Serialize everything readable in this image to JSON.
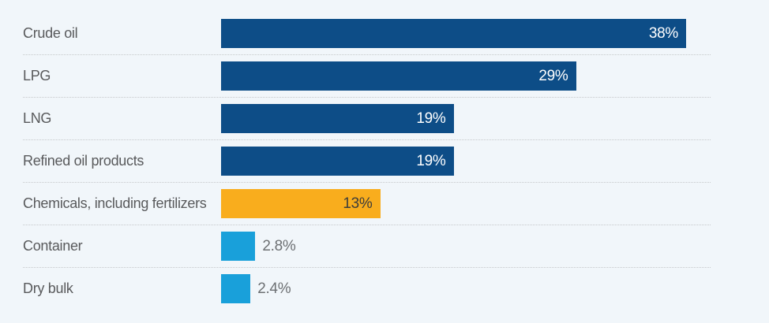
{
  "colors": {
    "background": "#f1f6fa",
    "dark_blue": "#0d4d87",
    "orange": "#f9ad1d",
    "cyan": "#19a0da",
    "label_text": "#595a5c",
    "value_outside": "#6d7073",
    "value_inside_light": "#ffffff",
    "value_inside_dark": "#3d3d3b",
    "separator": "#c6c8ca"
  },
  "chart_data": {
    "type": "bar",
    "orientation": "horizontal",
    "title": "",
    "xlabel": "",
    "ylabel": "",
    "unit": "%",
    "xlim": [
      0,
      40
    ],
    "grid": false,
    "legend": false,
    "categories": [
      "Crude oil",
      "LPG",
      "LNG",
      "Refined oil products",
      "Chemicals, including fertilizers",
      "Container",
      "Dry bulk"
    ],
    "values": [
      38,
      29,
      19,
      19,
      13,
      2.8,
      2.4
    ],
    "rows": [
      {
        "label": "Crude oil",
        "value": 38,
        "value_label": "38%",
        "color": "dark_blue",
        "value_position": "inside",
        "value_color": "value_inside_light"
      },
      {
        "label": "LPG",
        "value": 29,
        "value_label": "29%",
        "color": "dark_blue",
        "value_position": "inside",
        "value_color": "value_inside_light"
      },
      {
        "label": "LNG",
        "value": 19,
        "value_label": "19%",
        "color": "dark_blue",
        "value_position": "inside",
        "value_color": "value_inside_light"
      },
      {
        "label": "Refined oil products",
        "value": 19,
        "value_label": "19%",
        "color": "dark_blue",
        "value_position": "inside",
        "value_color": "value_inside_light"
      },
      {
        "label": "Chemicals, including fertilizers",
        "value": 13,
        "value_label": "13%",
        "color": "orange",
        "value_position": "inside",
        "value_color": "value_inside_dark"
      },
      {
        "label": "Container",
        "value": 2.8,
        "value_label": "2.8%",
        "color": "cyan",
        "value_position": "outside",
        "value_color": "value_outside"
      },
      {
        "label": "Dry bulk",
        "value": 2.4,
        "value_label": "2.4%",
        "color": "cyan",
        "value_position": "outside",
        "value_color": "value_outside"
      }
    ]
  }
}
